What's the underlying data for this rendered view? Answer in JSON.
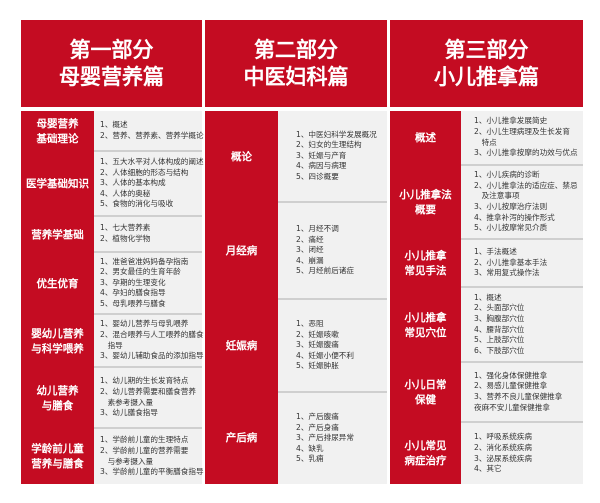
{
  "parts": [
    {
      "title": [
        "第一部分",
        "母婴营养篇"
      ],
      "rows": [
        {
          "label": [
            "母婴营养",
            "基础理论"
          ],
          "items": [
            "1、概述",
            "2、营养、营养素、营养学概论"
          ]
        },
        {
          "label": [
            "医学基础知识"
          ],
          "items": [
            "1、五大水平对人体构成的阐述",
            "2、人体细胞的形态与结构",
            "3、人体的基本构成",
            "4、人体的奥秘",
            "5、食物的消化与吸收"
          ]
        },
        {
          "label": [
            "营养学基础"
          ],
          "items": [
            "1、七大营养素",
            "2、植物化学物"
          ]
        },
        {
          "label": [
            "优生优育"
          ],
          "items": [
            "1、准爸爸准妈妈备孕指南",
            "2、男女最佳的生育年龄",
            "3、孕期的生理变化",
            "4、孕妇的膳食指导",
            "5、母乳喂养与膳食"
          ]
        },
        {
          "label": [
            "婴幼儿营养",
            "与科学喂养"
          ],
          "items": [
            "1、婴幼儿营养与母乳喂养",
            "2、混合喂养与人工喂养的膳食",
            "　指导",
            "3、婴幼儿辅助食品的添加指导"
          ]
        },
        {
          "label": [
            "幼儿营养",
            "与膳食"
          ],
          "items": [
            "1、幼儿期的生长发育特点",
            "2、幼儿营养需要和膳食营养",
            "　素参考摄入量",
            "3、幼儿膳食指导"
          ]
        },
        {
          "label": [
            "学龄前儿童",
            "营养与膳食"
          ],
          "items": [
            "1、学龄前儿童的生理特点",
            "2、学龄前儿童的营养需要",
            "　与参考摄入量",
            "3、学龄前儿童的平衡膳食指导"
          ]
        }
      ]
    },
    {
      "title": [
        "第二部分",
        "中医妇科篇"
      ],
      "rows": [
        {
          "label": [
            "概论"
          ],
          "items": [
            "1、中医妇科学发展概况",
            "2、妇女的生理结构",
            "3、妊娠与产育",
            "4、病因与病理",
            "5、四诊概要"
          ]
        },
        {
          "label": [
            "月经病"
          ],
          "items": [
            "1、月经不调",
            "2、痛经",
            "3、闭经",
            "4、崩漏",
            "5、月经前后诸症"
          ]
        },
        {
          "label": [
            "妊娠病"
          ],
          "items": [
            "1、恶阻",
            "2、妊娠咳嗽",
            "3、妊娠腹痛",
            "4、妊娠小便不利",
            "5、妊娠肿胀"
          ]
        },
        {
          "label": [
            "产后病"
          ],
          "items": [
            "1、产后腹痛",
            "2、产后身痛",
            "3、产后排尿异常",
            "4、缺乳",
            "5、乳痈"
          ]
        }
      ]
    },
    {
      "title": [
        "第三部分",
        "小儿推拿篇"
      ],
      "rows": [
        {
          "label": [
            "概述"
          ],
          "items": [
            "1、小儿推拿发展简史",
            "2、小儿生理病理及生长发育",
            "　特点",
            "3、小儿推拿按摩的功效与优点"
          ]
        },
        {
          "label": [
            "小儿推拿法",
            "概要"
          ],
          "items": [
            "1、小儿疾病的诊断",
            "2、小儿推拿法的适应症、禁忌",
            "　及注意事项",
            "3、小儿按摩治疗法则",
            "4、推拿补泻的操作形式",
            "5、小儿按摩常见介质"
          ]
        },
        {
          "label": [
            "小儿推拿",
            "常见手法"
          ],
          "items": [
            "1、手法概述",
            "2、小儿推拿基本手法",
            "3、常用复式操作法"
          ]
        },
        {
          "label": [
            "小儿推拿",
            "常见穴位"
          ],
          "items": [
            "1、概述",
            "2、头面部穴位",
            "3、胸腹部穴位",
            "4、腰背部穴位",
            "5、上肢部穴位",
            "6、下肢部穴位"
          ]
        },
        {
          "label": [
            "小儿日常",
            "保健"
          ],
          "items": [
            "1、强化身体保健推拿",
            "2、易感儿童保健推拿",
            "3、营养不良儿童保健推拿",
            "夜麻不安儿童保健推拿"
          ]
        },
        {
          "label": [
            "小儿常见",
            "病症治疗"
          ],
          "items": [
            "1、呼吸系统疾病",
            "2、消化系统疾病",
            "3、泌尿系统疾病",
            "4、其它"
          ]
        }
      ]
    }
  ],
  "colors": {
    "red": "#c40c22",
    "cell": "#f1f1f1"
  }
}
